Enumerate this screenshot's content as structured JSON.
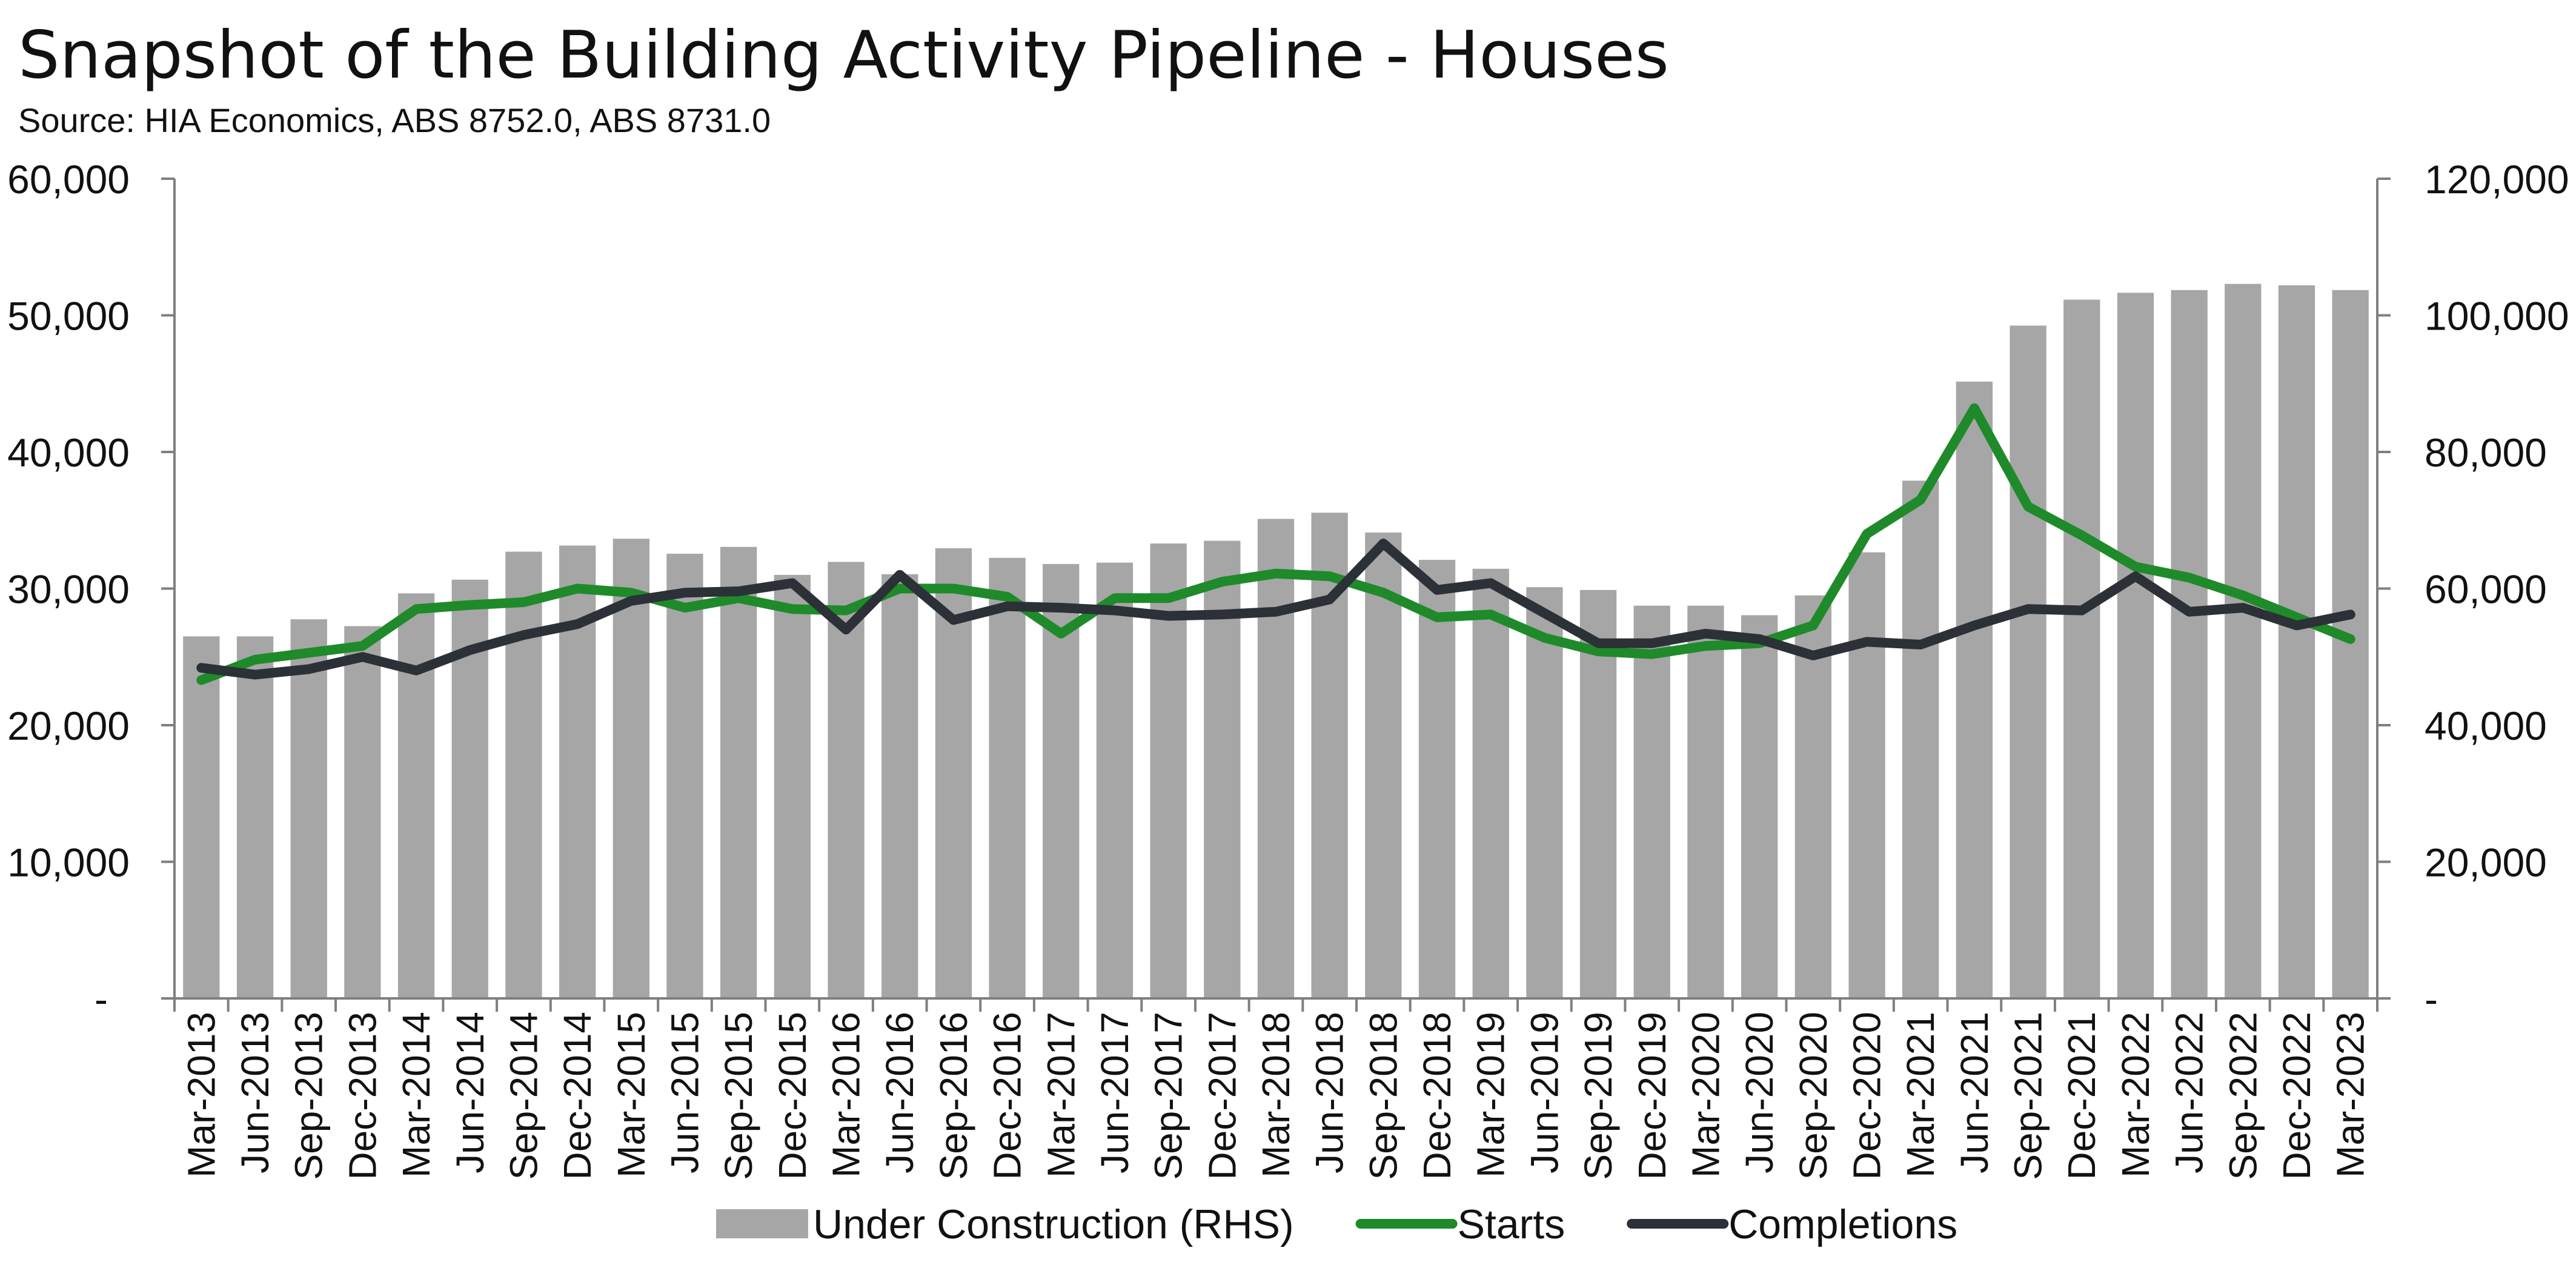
{
  "chart_data": {
    "type": "bar+line",
    "title": "Snapshot of the Building Activity Pipeline - Houses",
    "subtitle": "Source: HIA Economics, ABS 8752.0, ABS 8731.0",
    "categories": [
      "Mar-2013",
      "Jun-2013",
      "Sep-2013",
      "Dec-2013",
      "Mar-2014",
      "Jun-2014",
      "Sep-2014",
      "Dec-2014",
      "Mar-2015",
      "Jun-2015",
      "Sep-2015",
      "Dec-2015",
      "Mar-2016",
      "Jun-2016",
      "Sep-2016",
      "Dec-2016",
      "Mar-2017",
      "Jun-2017",
      "Sep-2017",
      "Dec-2017",
      "Mar-2018",
      "Jun-2018",
      "Sep-2018",
      "Dec-2018",
      "Mar-2019",
      "Jun-2019",
      "Sep-2019",
      "Dec-2019",
      "Mar-2020",
      "Jun-2020",
      "Sep-2020",
      "Dec-2020",
      "Mar-2021",
      "Jun-2021",
      "Sep-2021",
      "Dec-2021",
      "Mar-2022",
      "Jun-2022",
      "Sep-2022",
      "Dec-2022",
      "Mar-2023"
    ],
    "y_left": {
      "range": [
        0,
        60000
      ],
      "ticks": [
        "-",
        "10,000",
        "20,000",
        "30,000",
        "40,000",
        "50,000",
        "60,000"
      ]
    },
    "y_right": {
      "range": [
        0,
        120000
      ],
      "ticks": [
        "-",
        "20,000",
        "40,000",
        "60,000",
        "80,000",
        "100,000",
        "120,000"
      ]
    },
    "legend_position": "bottom",
    "grid": false,
    "series": [
      {
        "name": "Under Construction (RHS)",
        "kind": "bar",
        "axis": "right",
        "color": "#a6a6a6",
        "values": [
          53000,
          53000,
          55500,
          54500,
          59300,
          61300,
          65400,
          66300,
          67300,
          65100,
          66100,
          62000,
          63900,
          62100,
          65900,
          64500,
          63600,
          63800,
          66600,
          67000,
          70200,
          71100,
          68200,
          64200,
          62900,
          60200,
          59800,
          57500,
          57500,
          56100,
          59000,
          65300,
          75800,
          90300,
          98500,
          102300,
          103300,
          103700,
          104600,
          104400,
          103700
        ]
      },
      {
        "name": "Starts",
        "kind": "line",
        "axis": "left",
        "color": "#1f8a2a",
        "values": [
          23300,
          24800,
          25300,
          25800,
          28500,
          28800,
          29000,
          30000,
          29700,
          28600,
          29300,
          28500,
          28400,
          30000,
          30000,
          29400,
          26700,
          29300,
          29300,
          30500,
          31100,
          30900,
          29700,
          27900,
          28100,
          26400,
          25400,
          25200,
          25800,
          26000,
          27300,
          34000,
          36500,
          43200,
          36000,
          33900,
          31600,
          30800,
          29500,
          27900,
          26300
        ]
      },
      {
        "name": "Completions",
        "kind": "line",
        "axis": "left",
        "color": "#2b3136",
        "values": [
          24200,
          23700,
          24100,
          25000,
          24000,
          25500,
          26600,
          27400,
          29100,
          29700,
          29800,
          30400,
          27000,
          31000,
          27700,
          28700,
          28600,
          28400,
          28000,
          28100,
          28300,
          29200,
          33300,
          29900,
          30400,
          28200,
          26000,
          26000,
          26700,
          26300,
          25100,
          26100,
          25900,
          27300,
          28500,
          28400,
          30900,
          28300,
          28600,
          27300,
          28100
        ]
      }
    ]
  }
}
